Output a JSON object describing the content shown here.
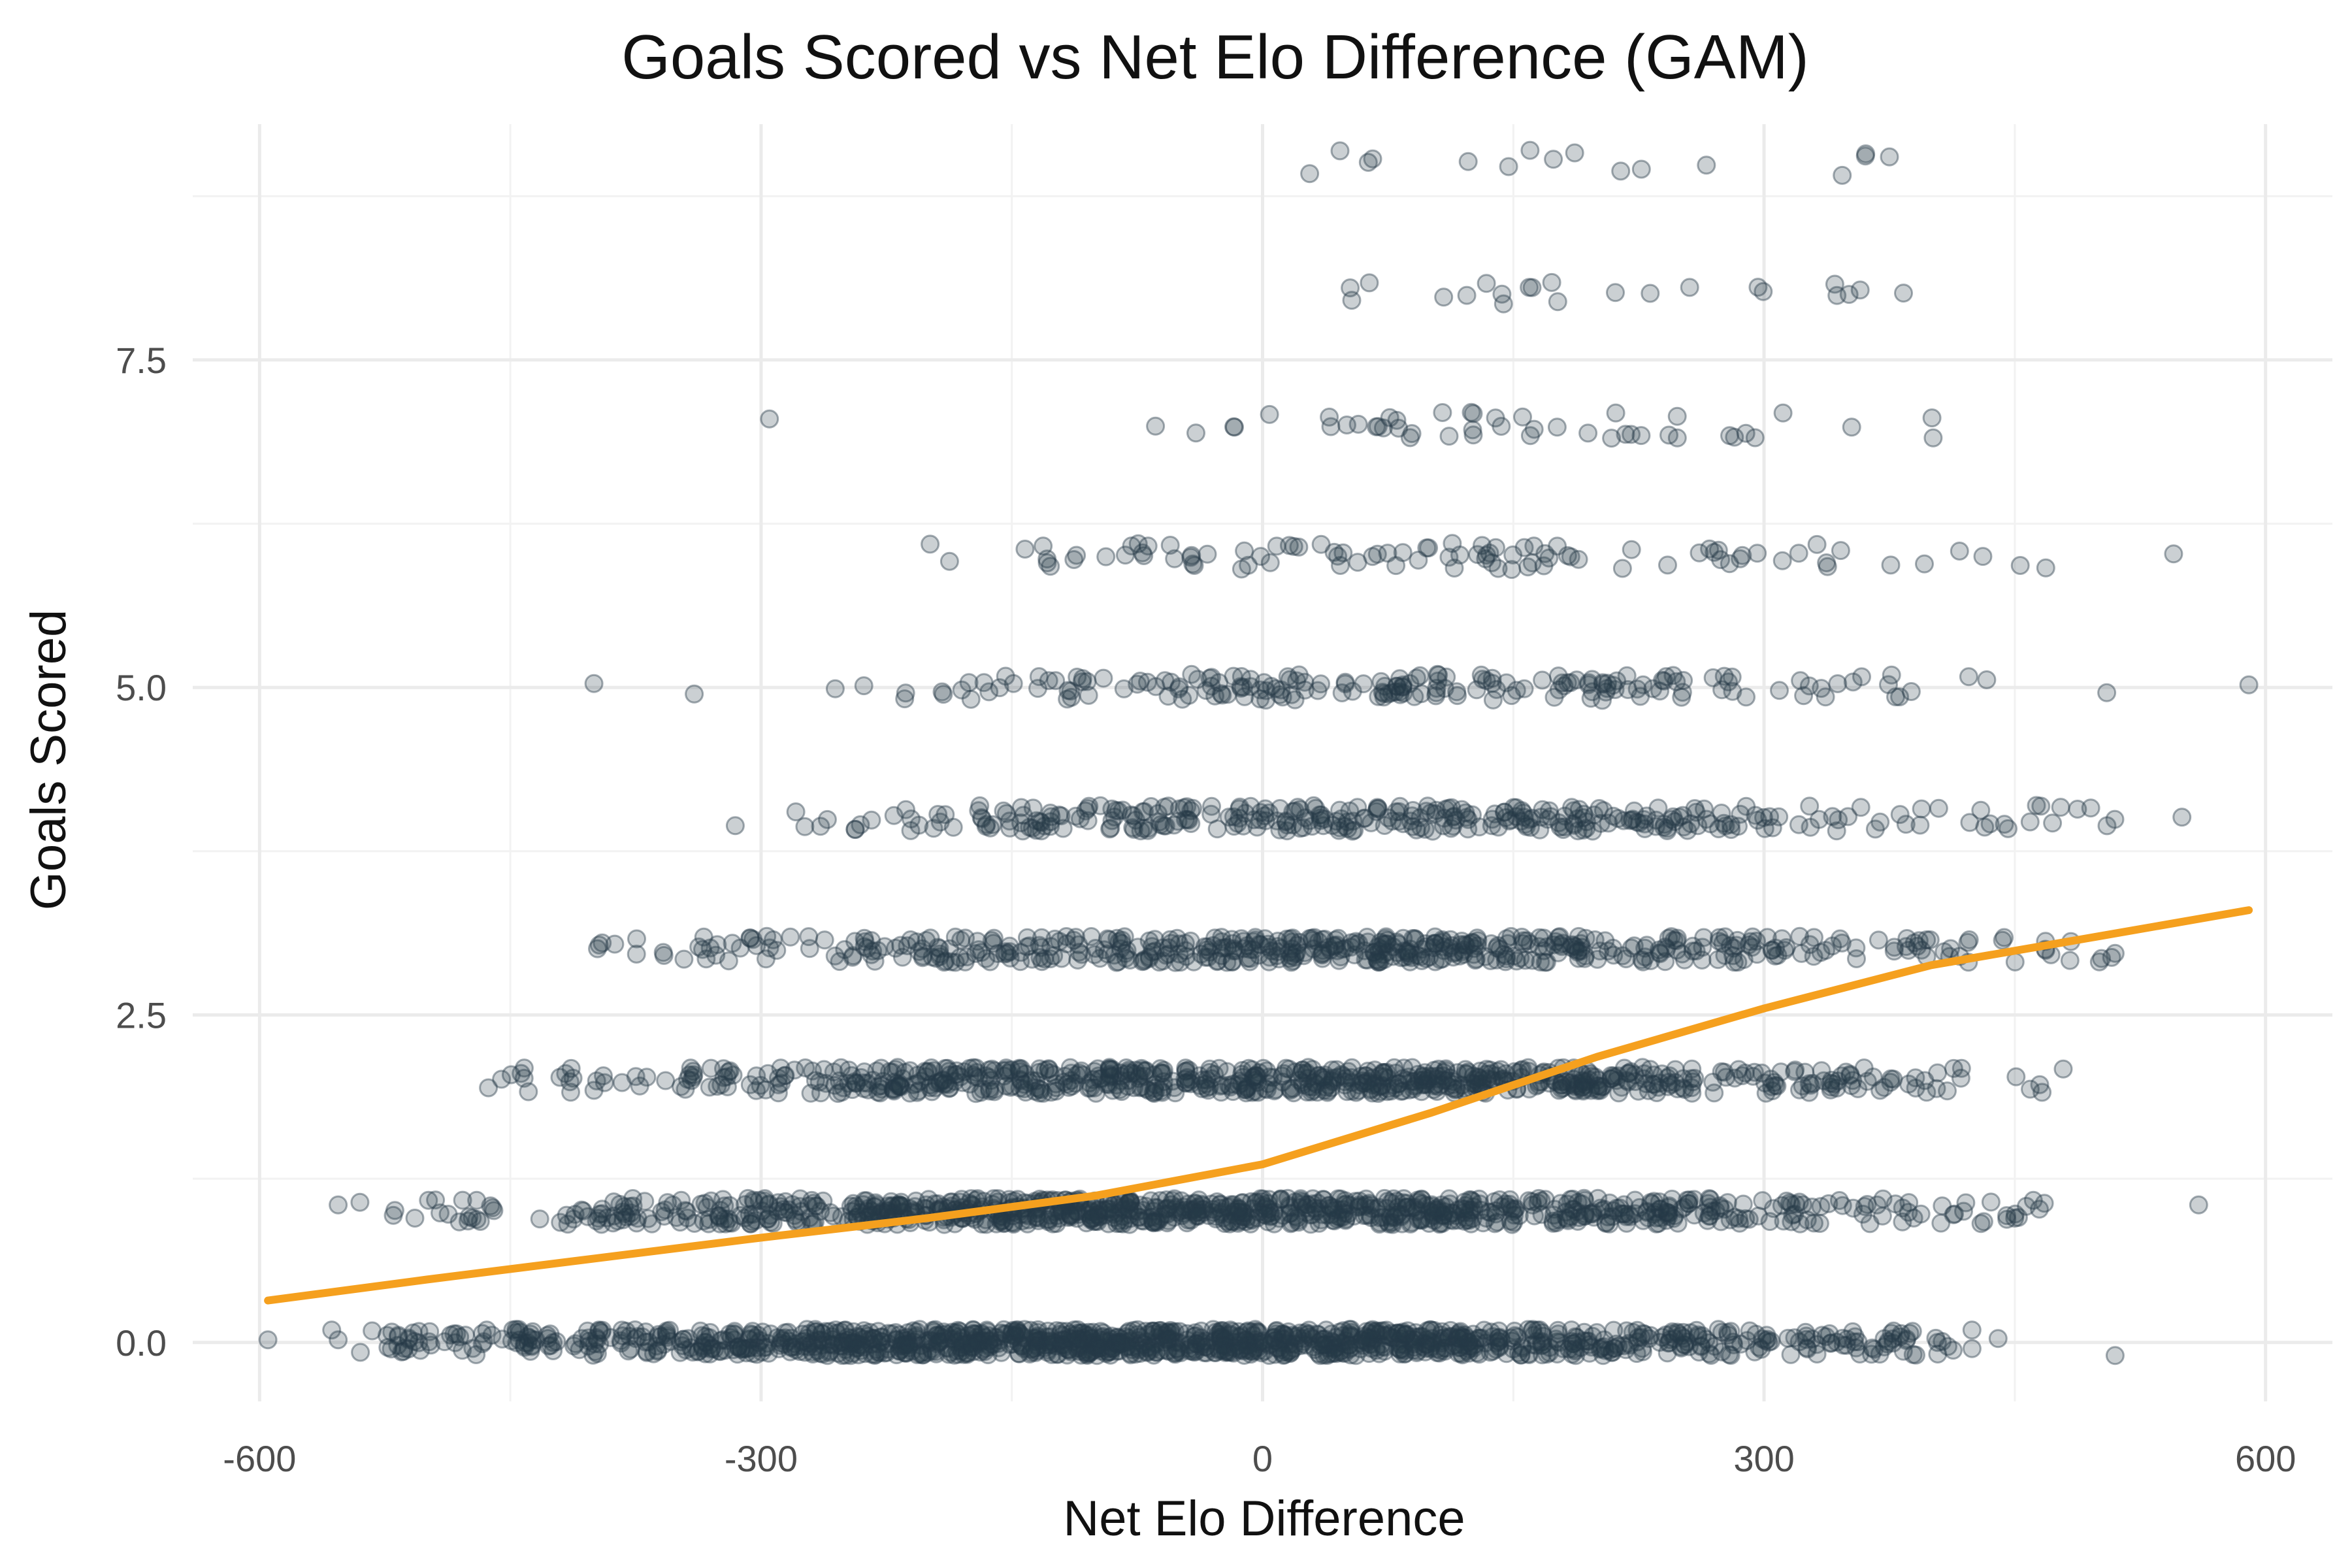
{
  "chart_data": {
    "type": "scatter",
    "title": "Goals Scored vs Net Elo Difference (GAM)",
    "xlabel": "Net Elo Difference",
    "ylabel": "Goals Scored",
    "xlim": [
      -640,
      640
    ],
    "ylim": [
      -0.45,
      9.3
    ],
    "x_ticks": [
      -600,
      -300,
      0,
      300,
      600
    ],
    "x_tick_labels": [
      "-600",
      "-300",
      "0",
      "300",
      "600"
    ],
    "x_minor_ticks": [
      -450,
      -150,
      150,
      450
    ],
    "y_ticks": [
      0,
      2.5,
      5,
      7.5
    ],
    "y_tick_labels": [
      "0.0",
      "2.5",
      "5.0",
      "7.5"
    ],
    "y_minor_ticks": [
      1.25,
      3.75,
      6.25,
      8.75
    ],
    "grid": true,
    "legend": "none",
    "colors": {
      "points": "#263a48",
      "fit": "#f5a01e"
    },
    "point_bands": [
      {
        "goals": 0,
        "x_min": -560,
        "x_max": 425,
        "density": 1200
      },
      {
        "goals": 1,
        "x_min": -520,
        "x_max": 470,
        "density": 900
      },
      {
        "goals": 2,
        "x_min": -470,
        "x_max": 500,
        "density": 700
      },
      {
        "goals": 3,
        "x_min": -430,
        "x_max": 510,
        "density": 500
      },
      {
        "goals": 4,
        "x_min": -350,
        "x_max": 510,
        "density": 320
      },
      {
        "goals": 5,
        "x_min": -280,
        "x_max": 450,
        "density": 180
      },
      {
        "goals": 6,
        "x_min": -230,
        "x_max": 500,
        "density": 90
      },
      {
        "goals": 7,
        "x_min": -110,
        "x_max": 440,
        "density": 40
      },
      {
        "goals": 8,
        "x_min": 0,
        "x_max": 440,
        "density": 16
      },
      {
        "goals": 9,
        "x_min": -5,
        "x_max": 420,
        "density": 8
      }
    ],
    "outliers": [
      {
        "x": -595,
        "y": 0.02
      },
      {
        "x": -553,
        "y": 0.02
      },
      {
        "x": -553,
        "y": 1.05
      },
      {
        "x": -540,
        "y": 1.07
      },
      {
        "x": -520,
        "y": 0.97
      },
      {
        "x": 560,
        "y": 1.05
      },
      {
        "x": 510,
        "y": -0.1
      },
      {
        "x": 440,
        "y": 0.03
      },
      {
        "x": -400,
        "y": 5.03
      },
      {
        "x": -340,
        "y": 4.95
      },
      {
        "x": 590,
        "y": 5.02
      },
      {
        "x": 505,
        "y": 4.96
      },
      {
        "x": 545,
        "y": 6.02
      },
      {
        "x": 550,
        "y": 4.01
      },
      {
        "x": 510,
        "y": 2.97
      },
      {
        "x": -295,
        "y": 7.05
      },
      {
        "x": 160,
        "y": 9.1
      },
      {
        "x": 375,
        "y": 9.05
      }
    ],
    "gam_fit": {
      "x": [
        -595,
        -500,
        -400,
        -300,
        -200,
        -100,
        0,
        100,
        200,
        300,
        400,
        500,
        590
      ],
      "y": [
        0.32,
        0.48,
        0.64,
        0.8,
        0.95,
        1.12,
        1.36,
        1.75,
        2.18,
        2.55,
        2.88,
        3.1,
        3.3
      ]
    }
  }
}
